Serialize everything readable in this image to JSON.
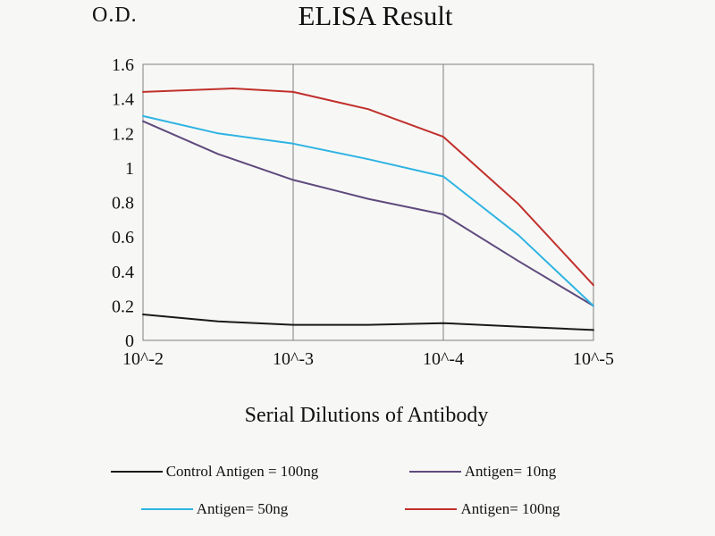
{
  "chart_data": {
    "type": "line",
    "title": "ELISA Result",
    "ylabel": "O.D.",
    "xlabel": "Serial Dilutions of Antibody",
    "categories": [
      "10^-2",
      "10^-3",
      "10^-4",
      "10^-5"
    ],
    "ylim": [
      0,
      1.6
    ],
    "yticks": [
      0,
      0.2,
      0.4,
      0.6,
      0.8,
      1,
      1.2,
      1.4,
      1.6
    ],
    "grid": "vertical-only",
    "legend_position": "bottom",
    "axis_color": "#7f7f7f",
    "series": [
      {
        "name": "Control Antigen = 100ng",
        "color": "#1a1a1a",
        "values": [
          0.15,
          0.09,
          0.1,
          0.06
        ],
        "points": [
          [
            0,
            0.15
          ],
          [
            0.5,
            0.11
          ],
          [
            1,
            0.09
          ],
          [
            1.5,
            0.09
          ],
          [
            2,
            0.1
          ],
          [
            2.5,
            0.08
          ],
          [
            3,
            0.06
          ]
        ]
      },
      {
        "name": "Antigen= 10ng",
        "color": "#5f4a7d",
        "values": [
          1.27,
          0.93,
          0.73,
          0.2
        ],
        "points": [
          [
            0,
            1.27
          ],
          [
            0.5,
            1.08
          ],
          [
            1,
            0.93
          ],
          [
            1.5,
            0.82
          ],
          [
            2,
            0.73
          ],
          [
            2.5,
            0.46
          ],
          [
            3,
            0.2
          ]
        ]
      },
      {
        "name": "Antigen= 50ng",
        "color": "#2fb3e2",
        "values": [
          1.3,
          1.14,
          0.95,
          0.2
        ],
        "points": [
          [
            0,
            1.3
          ],
          [
            0.5,
            1.2
          ],
          [
            1,
            1.14
          ],
          [
            1.5,
            1.05
          ],
          [
            2,
            0.95
          ],
          [
            2.5,
            0.61
          ],
          [
            3,
            0.2
          ]
        ]
      },
      {
        "name": "Antigen= 100ng",
        "color": "#c1302c",
        "values": [
          1.44,
          1.44,
          1.18,
          0.32
        ],
        "points": [
          [
            0,
            1.44
          ],
          [
            0.6,
            1.46
          ],
          [
            1,
            1.44
          ],
          [
            1.5,
            1.34
          ],
          [
            2,
            1.18
          ],
          [
            2.5,
            0.79
          ],
          [
            3,
            0.32
          ]
        ]
      }
    ]
  }
}
